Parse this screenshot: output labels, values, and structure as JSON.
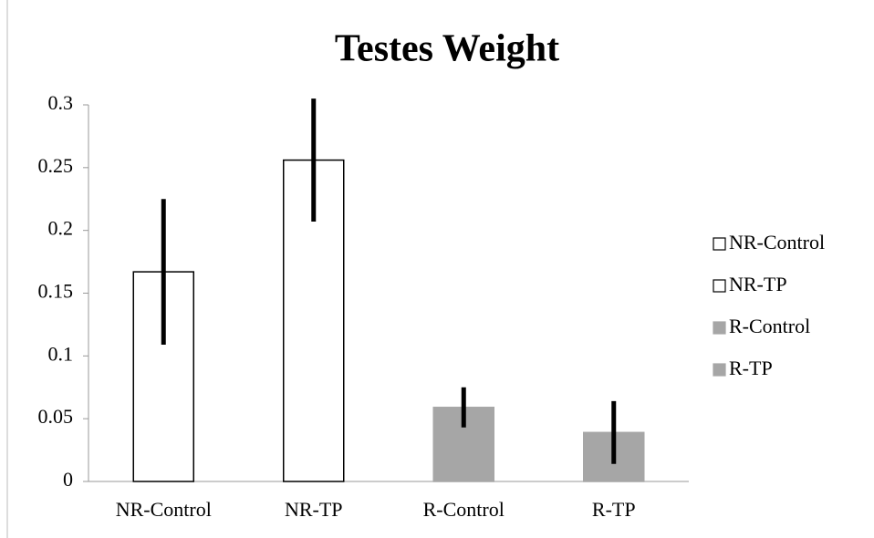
{
  "chart_data": {
    "type": "bar",
    "title": "Testes Weight",
    "categories": [
      "NR-Control",
      "NR-TP",
      "R-Control",
      "R-TP"
    ],
    "series": [
      {
        "name": "NR-Control",
        "color": "#ffffff",
        "stroke": "#000000",
        "values": [
          0.167,
          null,
          null,
          null
        ],
        "errors": [
          0.058,
          null,
          null,
          null
        ]
      },
      {
        "name": "NR-TP",
        "color": "#ffffff",
        "stroke": "#000000",
        "values": [
          null,
          0.256,
          null,
          null
        ],
        "errors": [
          null,
          0.049,
          null,
          null
        ]
      },
      {
        "name": "R-Control",
        "color": "#a6a6a6",
        "stroke": "#a6a6a6",
        "values": [
          null,
          null,
          0.059,
          null
        ],
        "errors": [
          null,
          null,
          0.016,
          null
        ]
      },
      {
        "name": "R-TP",
        "color": "#a6a6a6",
        "stroke": "#a6a6a6",
        "values": [
          null,
          null,
          null,
          0.039
        ],
        "errors": [
          null,
          null,
          null,
          0.025
        ]
      }
    ],
    "ylim": [
      0,
      0.3
    ],
    "yticks": [
      0,
      0.05,
      0.1,
      0.15,
      0.2,
      0.25,
      0.3
    ],
    "grid": false,
    "legend": "right"
  }
}
